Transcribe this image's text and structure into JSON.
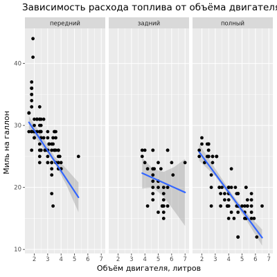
{
  "chart_data": {
    "type": "scatter",
    "title": "Зависимость расхода топлива от объёма двигателя",
    "xlabel": "Объём двигателя, литров",
    "ylabel": "Миль на галлон",
    "xlim": [
      1.3,
      7.3
    ],
    "ylim": [
      9.35,
      45.65
    ],
    "xticks": [
      2,
      3,
      4,
      5,
      6,
      7
    ],
    "yticks": [
      10,
      20,
      30,
      40
    ],
    "grid": true,
    "colors": {
      "panel_bg": "#ebebeb",
      "strip_bg": "#d9d9d9",
      "grid_major": "#ffffff",
      "points": "#000000",
      "trend": "#3366ff",
      "ribbon": "#999999"
    },
    "facets": [
      {
        "label": "передний",
        "points": [
          [
            1.8,
            29
          ],
          [
            1.8,
            29
          ],
          [
            2.0,
            31
          ],
          [
            2.0,
            30
          ],
          [
            2.8,
            26
          ],
          [
            2.8,
            26
          ],
          [
            3.1,
            27
          ],
          [
            2.4,
            30
          ],
          [
            2.4,
            33
          ],
          [
            3.1,
            27
          ],
          [
            3.5,
            26
          ],
          [
            3.6,
            26
          ],
          [
            2.4,
            26
          ],
          [
            3.0,
            24
          ],
          [
            3.3,
            24
          ],
          [
            3.3,
            24
          ],
          [
            3.3,
            22
          ],
          [
            3.3,
            19
          ],
          [
            3.3,
            24
          ],
          [
            3.8,
            23
          ],
          [
            3.8,
            26
          ],
          [
            3.8,
            26
          ],
          [
            4.0,
            23
          ],
          [
            2.4,
            25
          ],
          [
            2.4,
            24
          ],
          [
            3.0,
            26
          ],
          [
            3.0,
            26
          ],
          [
            3.5,
            29
          ],
          [
            2.2,
            31
          ],
          [
            2.2,
            31
          ],
          [
            2.4,
            29
          ],
          [
            2.4,
            31
          ],
          [
            3.0,
            29
          ],
          [
            3.0,
            28
          ],
          [
            3.5,
            26
          ],
          [
            1.8,
            29
          ],
          [
            1.8,
            29
          ],
          [
            2.0,
            28
          ],
          [
            2.0,
            29
          ],
          [
            2.8,
            26
          ],
          [
            1.9,
            44
          ],
          [
            2.0,
            29
          ],
          [
            2.0,
            29
          ],
          [
            2.0,
            29
          ],
          [
            2.0,
            29
          ],
          [
            2.5,
            29
          ],
          [
            2.5,
            29
          ],
          [
            1.8,
            36
          ],
          [
            1.8,
            36
          ],
          [
            1.8,
            29
          ],
          [
            1.8,
            26
          ],
          [
            2.0,
            29
          ],
          [
            2.0,
            29
          ],
          [
            1.8,
            33
          ],
          [
            1.8,
            35
          ],
          [
            1.8,
            37
          ],
          [
            1.8,
            35
          ],
          [
            1.6,
            32
          ],
          [
            1.6,
            32
          ],
          [
            1.6,
            32
          ],
          [
            1.6,
            29
          ],
          [
            1.6,
            32
          ],
          [
            1.8,
            34
          ],
          [
            1.8,
            36
          ],
          [
            1.8,
            36
          ],
          [
            2.0,
            29
          ],
          [
            2.4,
            26
          ],
          [
            2.4,
            27
          ],
          [
            2.5,
            30
          ],
          [
            2.5,
            31
          ],
          [
            3.3,
            26
          ],
          [
            3.8,
            26
          ],
          [
            3.5,
            26
          ],
          [
            3.6,
            24
          ],
          [
            3.5,
            29
          ],
          [
            2.4,
            31
          ],
          [
            2.4,
            29
          ],
          [
            2.7,
            28
          ],
          [
            2.7,
            31
          ],
          [
            3.1,
            27
          ],
          [
            2.5,
            26
          ],
          [
            2.5,
            26
          ],
          [
            5.3,
            25
          ],
          [
            3.8,
            24
          ],
          [
            3.4,
            17
          ],
          [
            2.2,
            29
          ],
          [
            2.2,
            31
          ],
          [
            2.0,
            29
          ],
          [
            1.9,
            41
          ],
          [
            2.0,
            28
          ],
          [
            2.5,
            26
          ],
          [
            2.8,
            26
          ],
          [
            2.5,
            29
          ],
          [
            2.5,
            28
          ],
          [
            3.3,
            27
          ],
          [
            3.4,
            27
          ],
          [
            3.4,
            28
          ],
          [
            3.6,
            29
          ],
          [
            3.6,
            28
          ],
          [
            3.8,
            26
          ],
          [
            3.8,
            25
          ],
          [
            3.9,
            25
          ],
          [
            4.0,
            24
          ],
          [
            4.0,
            23
          ],
          [
            3.0,
            25
          ],
          [
            3.0,
            24
          ],
          [
            3.3,
            23
          ]
        ],
        "trend": {
          "x": [
            1.6,
            5.3
          ],
          "y": [
            30.5,
            18.4
          ]
        },
        "ribbon": {
          "x": [
            1.6,
            2.5,
            3.5,
            4.4,
            5.3
          ],
          "lower": [
            29.5,
            26.8,
            24.0,
            20.4,
            16.0
          ],
          "upper": [
            31.5,
            28.6,
            25.0,
            23.0,
            20.8
          ]
        }
      },
      {
        "label": "задний",
        "points": [
          [
            3.8,
            26
          ],
          [
            3.8,
            25
          ],
          [
            4.0,
            26
          ],
          [
            4.6,
            26
          ],
          [
            4.6,
            26
          ],
          [
            5.0,
            24
          ],
          [
            5.7,
            26
          ],
          [
            5.7,
            26
          ],
          [
            6.0,
            24
          ],
          [
            7.0,
            24
          ],
          [
            4.2,
            17
          ],
          [
            5.4,
            15
          ],
          [
            5.0,
            21
          ],
          [
            5.0,
            20
          ],
          [
            5.0,
            21
          ],
          [
            4.6,
            23
          ],
          [
            4.6,
            22
          ],
          [
            4.6,
            21
          ],
          [
            4.6,
            20
          ],
          [
            4.6,
            19
          ],
          [
            5.4,
            20
          ],
          [
            5.4,
            18
          ],
          [
            5.4,
            19
          ],
          [
            4.6,
            23
          ],
          [
            5.4,
            16
          ],
          [
            5.4,
            17
          ],
          [
            5.3,
            17
          ],
          [
            5.3,
            17
          ],
          [
            4.6,
            18
          ],
          [
            5.0,
            16
          ],
          [
            5.7,
            17
          ],
          [
            4.0,
            24
          ],
          [
            4.2,
            23
          ],
          [
            4.7,
            23
          ],
          [
            5.2,
            23
          ],
          [
            5.7,
            20
          ],
          [
            6.1,
            22
          ]
        ],
        "trend": {
          "x": [
            3.8,
            7.0
          ],
          "y": [
            22.3,
            19.2
          ]
        },
        "ribbon": {
          "x": [
            3.8,
            4.6,
            5.4,
            6.2,
            7.0
          ],
          "lower": [
            19.8,
            20.0,
            18.5,
            16.2,
            13.8
          ],
          "upper": [
            24.8,
            23.0,
            22.5,
            23.3,
            24.6
          ]
        }
      },
      {
        "label": "полный",
        "points": [
          [
            1.8,
            26
          ],
          [
            1.8,
            25
          ],
          [
            2.0,
            28
          ],
          [
            2.0,
            27
          ],
          [
            2.8,
            25
          ],
          [
            2.8,
            25
          ],
          [
            3.1,
            25
          ],
          [
            3.1,
            25
          ],
          [
            2.8,
            24
          ],
          [
            3.1,
            25
          ],
          [
            4.2,
            23
          ],
          [
            5.3,
            20
          ],
          [
            5.3,
            15
          ],
          [
            5.3,
            20
          ],
          [
            5.7,
            17
          ],
          [
            6.5,
            17
          ],
          [
            3.7,
            19
          ],
          [
            3.7,
            18
          ],
          [
            3.9,
            17
          ],
          [
            3.9,
            17
          ],
          [
            4.7,
            19
          ],
          [
            4.7,
            19
          ],
          [
            4.7,
            12
          ],
          [
            5.2,
            17
          ],
          [
            5.2,
            15
          ],
          [
            3.9,
            17
          ],
          [
            4.7,
            17
          ],
          [
            4.7,
            12
          ],
          [
            4.7,
            17
          ],
          [
            5.2,
            16
          ],
          [
            5.7,
            18
          ],
          [
            5.9,
            15
          ],
          [
            4.7,
            16
          ],
          [
            4.7,
            12
          ],
          [
            4.7,
            17
          ],
          [
            4.7,
            17
          ],
          [
            5.7,
            16
          ],
          [
            6.1,
            12
          ],
          [
            4.0,
            15
          ],
          [
            4.2,
            16
          ],
          [
            4.4,
            15
          ],
          [
            4.6,
            17
          ],
          [
            5.4,
            17
          ],
          [
            5.4,
            18
          ],
          [
            5.4,
            17
          ],
          [
            4.0,
            19
          ],
          [
            4.0,
            19
          ],
          [
            4.6,
            19
          ],
          [
            5.0,
            17
          ],
          [
            2.4,
            25
          ],
          [
            2.4,
            27
          ],
          [
            2.5,
            25
          ],
          [
            2.5,
            27
          ],
          [
            3.3,
            20
          ],
          [
            3.3,
            20
          ],
          [
            4.0,
            19
          ],
          [
            4.0,
            18
          ],
          [
            4.2,
            20
          ],
          [
            4.7,
            17
          ],
          [
            5.7,
            19
          ],
          [
            2.7,
            20
          ],
          [
            2.7,
            17
          ],
          [
            2.7,
            22
          ],
          [
            3.4,
            19
          ],
          [
            3.4,
            17
          ],
          [
            4.0,
            20
          ],
          [
            4.0,
            20
          ],
          [
            4.0,
            20
          ],
          [
            4.0,
            17
          ],
          [
            4.7,
            17
          ],
          [
            4.7,
            19
          ],
          [
            4.7,
            17
          ],
          [
            5.7,
            15
          ],
          [
            2.5,
            25
          ],
          [
            2.5,
            25
          ],
          [
            2.5,
            27
          ],
          [
            2.5,
            25
          ],
          [
            2.2,
            24
          ],
          [
            2.5,
            26
          ],
          [
            2.5,
            26
          ],
          [
            2.5,
            27
          ],
          [
            3.5,
            20
          ],
          [
            4.0,
            20
          ],
          [
            4.5,
            20
          ],
          [
            4.7,
            19
          ],
          [
            5.3,
            15
          ]
        ],
        "trend": {
          "x": [
            1.8,
            6.5
          ],
          "y": [
            25.7,
            11.9
          ]
        },
        "ribbon": {
          "x": [
            1.8,
            3.0,
            4.2,
            5.3,
            6.5
          ],
          "lower": [
            24.3,
            21.8,
            18.2,
            14.8,
            10.6
          ],
          "upper": [
            27.0,
            23.0,
            19.1,
            16.0,
            13.2
          ]
        }
      }
    ]
  }
}
